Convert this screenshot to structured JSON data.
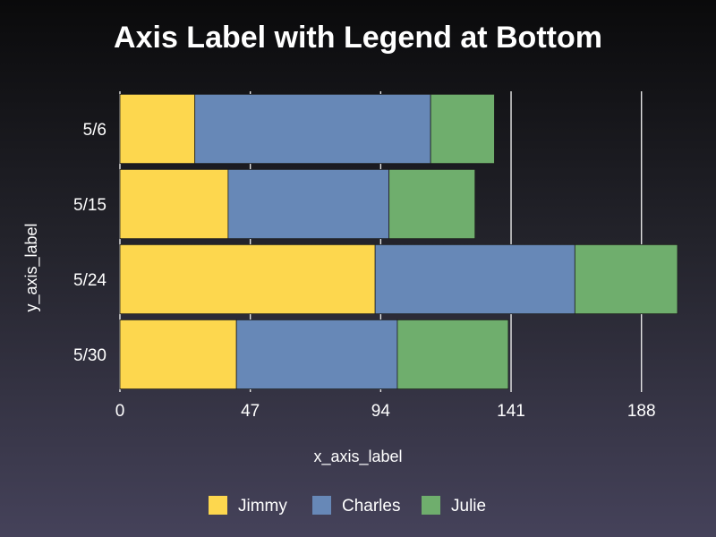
{
  "chart_data": {
    "type": "bar",
    "orientation": "horizontal",
    "stacked": true,
    "title": "Axis Label with Legend at Bottom",
    "xlabel": "x_axis_label",
    "ylabel": "y_axis_label",
    "categories": [
      "5/6",
      "5/15",
      "5/24",
      "5/30"
    ],
    "series": [
      {
        "name": "Jimmy",
        "color": "#fdd74e",
        "values": [
          27,
          39,
          92,
          42
        ]
      },
      {
        "name": "Charles",
        "color": "#6788b7",
        "values": [
          85,
          58,
          72,
          58
        ]
      },
      {
        "name": "Julie",
        "color": "#6fae6d",
        "values": [
          23,
          31,
          37,
          40
        ]
      }
    ],
    "xlim": [
      0,
      201
    ],
    "xticks": [
      "0",
      "47",
      "94",
      "141",
      "188"
    ],
    "grid": "vertical",
    "legend_position": "bottom"
  }
}
